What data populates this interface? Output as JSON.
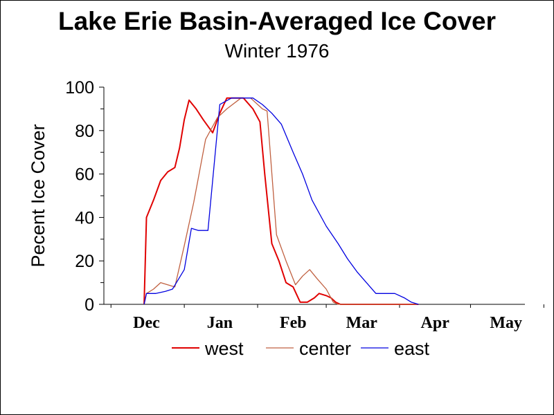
{
  "chart_data": {
    "type": "line",
    "title": "Lake Erie Basin-Averaged Ice Cover",
    "subtitle": "Winter 1976",
    "ylabel": "Pecent Ice Cover",
    "xlabel": "",
    "ylim": [
      0,
      100
    ],
    "y_ticks": [
      0,
      20,
      40,
      60,
      80,
      100
    ],
    "x_ticks": [
      "Dec",
      "Jan",
      "Feb",
      "Mar",
      "Apr",
      "May"
    ],
    "grid": false,
    "legend_position": "bottom",
    "series": [
      {
        "name": "west",
        "color": "#e00000",
        "x": [
          "Dec 15",
          "Dec 16",
          "Dec 19",
          "Dec 22",
          "Dec 25",
          "Dec 28",
          "Dec 30",
          "Jan 1",
          "Jan 3",
          "Jan 6",
          "Jan 9",
          "Jan 13",
          "Jan 16",
          "Jan 19",
          "Jan 22",
          "Jan 26",
          "Jan 30",
          "Feb 2",
          "Feb 4",
          "Feb 7",
          "Feb 10",
          "Feb 13",
          "Feb 16",
          "Feb 19",
          "Feb 22",
          "Feb 25",
          "Feb 27",
          "Mar 1",
          "Mar 3",
          "Mar 5",
          "Mar 7",
          "Mar 9",
          "Mar 11",
          "Mar 13",
          "Mar 16",
          "Apr 9"
        ],
        "values": [
          0,
          40,
          48,
          57,
          61,
          63,
          72,
          85,
          94,
          90,
          85,
          79,
          88,
          95,
          95,
          95,
          90,
          84,
          60,
          28,
          20,
          10,
          8,
          1,
          1,
          3,
          5,
          4,
          3,
          1,
          0,
          0,
          0,
          0,
          0,
          0
        ]
      },
      {
        "name": "center",
        "color": "#c06040",
        "x": [
          "Dec 15",
          "Dec 16",
          "Dec 19",
          "Dec 22",
          "Dec 25",
          "Dec 28",
          "Jan 1",
          "Jan 5",
          "Jan 10",
          "Jan 15",
          "Jan 19",
          "Jan 25",
          "Jan 29",
          "Feb 3",
          "Feb 5",
          "Feb 9",
          "Feb 13",
          "Feb 17",
          "Feb 20",
          "Feb 23",
          "Feb 26",
          "Mar 1",
          "Mar 4",
          "Mar 6",
          "Apr 9"
        ],
        "values": [
          0,
          5,
          7,
          10,
          9,
          8,
          27,
          47,
          76,
          86,
          90,
          95,
          95,
          90,
          89,
          32,
          20,
          9,
          13,
          16,
          12,
          7,
          1,
          0,
          0
        ]
      },
      {
        "name": "east",
        "color": "#0000e0",
        "x": [
          "Dec 15",
          "Dec 16",
          "Dec 20",
          "Dec 24",
          "Dec 27",
          "Jan 1",
          "Jan 4",
          "Jan 7",
          "Jan 11",
          "Jan 16",
          "Jan 21",
          "Jan 26",
          "Jan 30",
          "Feb 3",
          "Feb 7",
          "Feb 11",
          "Feb 16",
          "Feb 20",
          "Feb 24",
          "Mar 1",
          "Mar 6",
          "Mar 10",
          "Mar 14",
          "Mar 18",
          "Mar 22",
          "Mar 26",
          "Mar 30",
          "Apr 3",
          "Apr 6",
          "Apr 9"
        ],
        "values": [
          0,
          5,
          5,
          6,
          7,
          16,
          35,
          34,
          34,
          92,
          95,
          95,
          95,
          92,
          88,
          83,
          70,
          60,
          48,
          36,
          28,
          21,
          15,
          10,
          5,
          5,
          5,
          3,
          1,
          0
        ]
      }
    ]
  }
}
